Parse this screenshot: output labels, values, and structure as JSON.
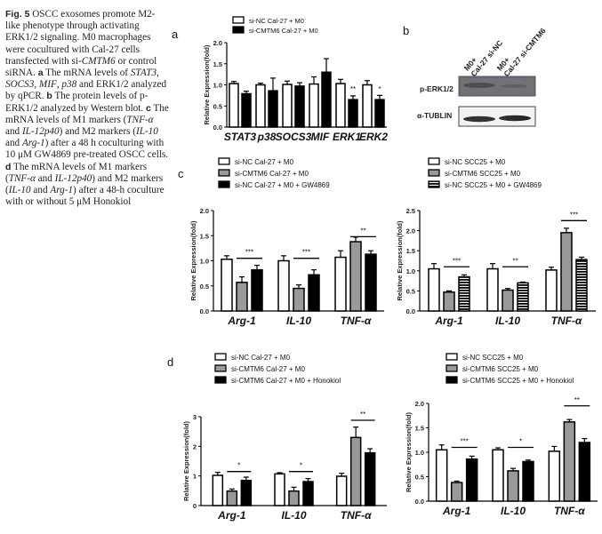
{
  "caption": {
    "fig_label": "Fig. 5",
    "parts": [
      {
        "t": " OSCC exosomes promote M2-like phenotype through activating ERK1/2 signaling. M0 macrophages were cocultured with Cal-27 cells transfected with si-",
        "s": "n"
      },
      {
        "t": "CMTM6",
        "s": "i"
      },
      {
        "t": " or control siRNA. ",
        "s": "n"
      },
      {
        "t": "a",
        "s": "b"
      },
      {
        "t": " The mRNA levels of ",
        "s": "n"
      },
      {
        "t": "STAT3",
        "s": "i"
      },
      {
        "t": ", ",
        "s": "n"
      },
      {
        "t": "SOCS3",
        "s": "i"
      },
      {
        "t": ", ",
        "s": "n"
      },
      {
        "t": "MIF",
        "s": "i"
      },
      {
        "t": ", ",
        "s": "n"
      },
      {
        "t": "p38",
        "s": "i"
      },
      {
        "t": " and ERK1/2 analyzed by qPCR. ",
        "s": "n"
      },
      {
        "t": "b",
        "s": "b"
      },
      {
        "t": " The protein levels of p-ERK1/2 analyzed by Western blot. ",
        "s": "n"
      },
      {
        "t": "c",
        "s": "b"
      },
      {
        "t": " The mRNA levels of M1 markers (",
        "s": "n"
      },
      {
        "t": "TNF-α",
        "s": "i"
      },
      {
        "t": " and ",
        "s": "n"
      },
      {
        "t": "IL-12p40",
        "s": "i"
      },
      {
        "t": ") and M2 markers (",
        "s": "n"
      },
      {
        "t": "IL-10",
        "s": "i"
      },
      {
        "t": " and ",
        "s": "n"
      },
      {
        "t": "Arg-1",
        "s": "i"
      },
      {
        "t": ") after a 48 h coculturing with 10 μM GW4869 pre-treated OSCC cells. ",
        "s": "n"
      },
      {
        "t": "d",
        "s": "b"
      },
      {
        "t": " The mRNA levels of M1 markers (",
        "s": "n"
      },
      {
        "t": "TNF-α",
        "s": "i"
      },
      {
        "t": " and ",
        "s": "n"
      },
      {
        "t": "IL-12p40",
        "s": "i"
      },
      {
        "t": ") and M2 markers (",
        "s": "n"
      },
      {
        "t": "IL-10",
        "s": "i"
      },
      {
        "t": " and ",
        "s": "n"
      },
      {
        "t": "Arg-1",
        "s": "i"
      },
      {
        "t": ") after a 48-h coculture with or without 5 μM Honokiol",
        "s": "n"
      }
    ]
  },
  "panel_labels": {
    "a": "a",
    "b": "b",
    "c": "c",
    "d": "d"
  },
  "western_blot": {
    "lanes": [
      [
        "M0+",
        "Cal-27 si-NC"
      ],
      [
        "M0+",
        "Cal-27 si-CMTM6"
      ]
    ],
    "rows": [
      "p-ERK1/2",
      "α-TUBLIN"
    ]
  },
  "colors": {
    "white": "#ffffff",
    "gray": "#999999",
    "black": "#000000",
    "stroke": "#000000"
  },
  "chart_data": [
    {
      "id": "a",
      "type": "bar",
      "categories": [
        "STAT3",
        "p38",
        "SOCS3",
        "MIF",
        "ERK1",
        "ERK2"
      ],
      "ylabel": "Relative Expression(fold)",
      "ylim": [
        0,
        2.0
      ],
      "yticks": [
        "0.0",
        "0.5",
        "1.0",
        "1.5",
        "2.0"
      ],
      "ytick_values": [
        0,
        0.5,
        1.0,
        1.5,
        2.0
      ],
      "legend": "top",
      "series": [
        {
          "name": "si-NC Cal-27 + M0",
          "fill": "white",
          "values": [
            1.03,
            1.0,
            1.01,
            1.02,
            1.03,
            1.0
          ],
          "errors": [
            0.05,
            0.04,
            0.08,
            0.17,
            0.1,
            0.1
          ]
        },
        {
          "name": "si-CMTM6 Cal-27 + M0",
          "fill": "black",
          "values": [
            0.79,
            0.86,
            0.97,
            1.3,
            0.65,
            0.65
          ],
          "errors": [
            0.06,
            0.3,
            0.08,
            0.32,
            0.09,
            0.1
          ]
        }
      ],
      "annotations": [
        {
          "category": 4,
          "text": "**",
          "y": 0.8
        },
        {
          "category": 5,
          "text": "*",
          "y": 0.8
        }
      ]
    },
    {
      "id": "c-left",
      "type": "bar",
      "categories": [
        "Arg-1",
        "IL-10",
        "TNF-α"
      ],
      "ylabel": "Relative Expression(fold)",
      "ylim": [
        0,
        2.0
      ],
      "yticks": [
        "0.0",
        "0.5",
        "1.0",
        "1.5",
        "2.0"
      ],
      "ytick_values": [
        0,
        0.5,
        1.0,
        1.5,
        2.0
      ],
      "legend": "top",
      "series": [
        {
          "name": "si-NC Cal-27 + M0",
          "fill": "white",
          "values": [
            1.03,
            1.0,
            1.07
          ],
          "errors": [
            0.07,
            0.1,
            0.13
          ]
        },
        {
          "name": "si-CMTM6 Cal-27 + M0",
          "fill": "gray",
          "values": [
            0.57,
            0.45,
            1.38
          ],
          "errors": [
            0.11,
            0.07,
            0.09
          ]
        },
        {
          "name": "si-NC Cal-27 + M0 + GW4869",
          "fill": "black",
          "values": [
            0.82,
            0.72,
            1.13
          ],
          "errors": [
            0.09,
            0.1,
            0.07
          ]
        }
      ],
      "annotations": [
        {
          "category": 0,
          "text": "***",
          "y": 1.05
        },
        {
          "category": 1,
          "text": "***",
          "y": 1.05
        },
        {
          "category": 2,
          "text": "**",
          "y": 1.48
        }
      ]
    },
    {
      "id": "c-right",
      "type": "bar",
      "categories": [
        "Arg-1",
        "IL-10",
        "TNF-α"
      ],
      "ylabel": "Relative Expression(fold)",
      "ylim": [
        0,
        2.5
      ],
      "yticks": [
        "0.0",
        "0.5",
        "1.0",
        "1.5",
        "2.0",
        "2.5"
      ],
      "ytick_values": [
        0,
        0.5,
        1.0,
        1.5,
        2.0,
        2.5
      ],
      "legend": "top",
      "series": [
        {
          "name": "si-NC SCC25 + M0",
          "fill": "white",
          "values": [
            1.05,
            1.05,
            1.02
          ],
          "errors": [
            0.13,
            0.13,
            0.07
          ]
        },
        {
          "name": "si-CMTM6 SCC25 + M0",
          "fill": "gray",
          "values": [
            0.47,
            0.52,
            1.95
          ],
          "errors": [
            0.03,
            0.04,
            0.11
          ]
        },
        {
          "name": "si-NC SCC25 + M0 + GW4869",
          "fill": "stripes",
          "values": [
            0.85,
            0.7,
            1.28
          ],
          "errors": [
            0.05,
            0.02,
            0.06
          ]
        }
      ],
      "annotations": [
        {
          "category": 0,
          "text": "***",
          "y": 1.1
        },
        {
          "category": 1,
          "text": "**",
          "y": 1.1
        },
        {
          "category": 2,
          "text": "***",
          "y": 2.25
        }
      ]
    },
    {
      "id": "d-left",
      "type": "bar",
      "categories": [
        "Arg-1",
        "IL-10",
        "TNF-α"
      ],
      "ylabel": "Relative Expression(fold)",
      "ylim": [
        0,
        3
      ],
      "yticks": [
        "0",
        "1",
        "2",
        "3"
      ],
      "ytick_values": [
        0,
        1,
        2,
        3
      ],
      "legend": "top",
      "series": [
        {
          "name": "si-NC Cal-27 + M0",
          "fill": "white",
          "values": [
            1.02,
            1.07,
            0.99
          ],
          "errors": [
            0.1,
            0.04,
            0.1
          ]
        },
        {
          "name": "si-CMTM6 Cal-27 + M0",
          "fill": "gray",
          "values": [
            0.49,
            0.49,
            2.3
          ],
          "errors": [
            0.07,
            0.13,
            0.35
          ]
        },
        {
          "name": "si-CMTM6 Cal-27 + M0 + Honokiol",
          "fill": "black",
          "values": [
            0.85,
            0.81,
            1.78
          ],
          "errors": [
            0.11,
            0.1,
            0.14
          ]
        }
      ],
      "annotations": [
        {
          "category": 0,
          "text": "*",
          "y": 1.15
        },
        {
          "category": 1,
          "text": "*",
          "y": 1.15
        },
        {
          "category": 2,
          "text": "**",
          "y": 2.88
        }
      ]
    },
    {
      "id": "d-right",
      "type": "bar",
      "categories": [
        "Arg-1",
        "IL-10",
        "TNF-α"
      ],
      "ylabel": "Relative Expression(fold)",
      "ylim": [
        0,
        2.0
      ],
      "yticks": [
        "0.0",
        "0.5",
        "1.0",
        "1.5",
        "2.0"
      ],
      "ytick_values": [
        0,
        0.5,
        1.0,
        1.5,
        2.0
      ],
      "legend": "top",
      "series": [
        {
          "name": "si-NC SCC25 + M0",
          "fill": "white",
          "values": [
            1.05,
            1.05,
            1.02
          ],
          "errors": [
            0.1,
            0.04,
            0.1
          ]
        },
        {
          "name": "si-CMTM6 SCC25 + M0",
          "fill": "gray",
          "values": [
            0.38,
            0.62,
            1.62
          ],
          "errors": [
            0.03,
            0.05,
            0.05
          ]
        },
        {
          "name": "si-CMTM6 SCC25 + M0 + Honokiol",
          "fill": "black",
          "values": [
            0.86,
            0.81,
            1.2
          ],
          "errors": [
            0.06,
            0.03,
            0.08
          ]
        }
      ],
      "annotations": [
        {
          "category": 0,
          "text": "***",
          "y": 1.1
        },
        {
          "category": 1,
          "text": "*",
          "y": 1.1
        },
        {
          "category": 2,
          "text": "**",
          "y": 1.95
        }
      ]
    }
  ]
}
